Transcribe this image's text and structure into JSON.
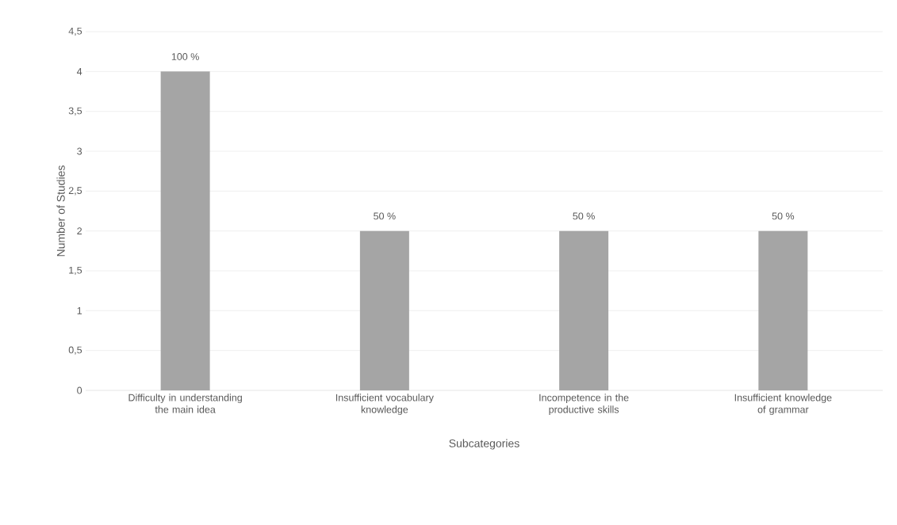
{
  "chart_data": {
    "type": "bar",
    "xlabel": "Subcategories",
    "ylabel": "Number of Studies",
    "categories": [
      "Difficulty in understanding the main idea",
      "Insufficient vocabulary knowledge",
      "Incompetence in the productive skills",
      "Insufficient knowledge of grammar"
    ],
    "values": [
      4,
      2,
      2,
      2
    ],
    "annotations": [
      {
        "text": "100 %",
        "x": "Difficulty in understanding the main idea",
        "y": 4
      },
      {
        "text": "50 %",
        "x": "Insufficient vocabulary knowledge",
        "y": 2
      },
      {
        "text": "50 %",
        "x": "Incompetence in the productive skills",
        "y": 2
      },
      {
        "text": "50 %",
        "x": "Insufficient knowledge of grammar",
        "y": 2
      }
    ],
    "color": "#a5a5a5",
    "ylim": [
      0,
      4.5
    ],
    "yticks": [
      0,
      {
        "value": 0.5,
        "label": "0,5"
      },
      1,
      {
        "value": 1.5,
        "label": "1,5"
      },
      2,
      {
        "value": 2.5,
        "label": "2,5"
      },
      3,
      {
        "value": 3.5,
        "label": "3,5"
      },
      4,
      {
        "value": 4.5,
        "label": "4,5"
      }
    ],
    "grid": "y"
  }
}
